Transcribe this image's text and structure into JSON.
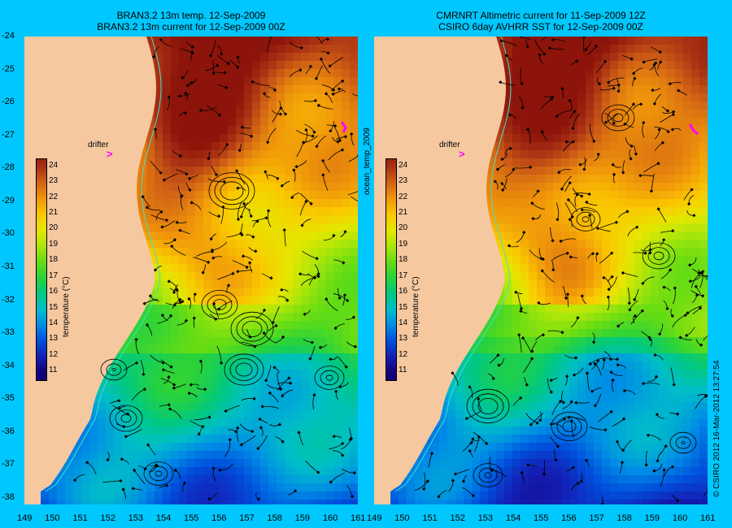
{
  "panels": [
    {
      "title_line1": "BRAN3.2 13m temp. 12-Sep-2009",
      "title_line2": "BRAN3.2 13m current for 12-Sep-2009 00Z",
      "drifter_label": "drifter",
      "drifter_marker": ">"
    },
    {
      "title_line1": "CMRNRT Altimetric current for 11-Sep-2009 12Z",
      "title_line2": "CSIRO 6day AVHRR SST for 12-Sep-2009 00Z",
      "drifter_label": "drifter",
      "drifter_marker": ">"
    }
  ],
  "side_label": "ocean_temp_2009",
  "copyright": "© CSIRO 2012   16-Mar-2012 13:27:54",
  "colorbar": {
    "title": "temperature (°C)",
    "ticks": [
      "24",
      "23",
      "22",
      "21",
      "20",
      "19",
      "18",
      "17",
      "16",
      "15",
      "14",
      "13",
      "12",
      "11"
    ]
  },
  "lat_ticks": [
    "-24",
    "-25",
    "-26",
    "-27",
    "-28",
    "-29",
    "-30",
    "-31",
    "-32",
    "-33",
    "-34",
    "-35",
    "-36",
    "-37",
    "-38"
  ],
  "lon_ticks": [
    "149",
    "150",
    "151",
    "152",
    "153",
    "154",
    "155",
    "156",
    "157",
    "158",
    "159",
    "160",
    "161"
  ],
  "lon_ticks_right": [
    "149",
    "150",
    "151",
    "152",
    "153",
    "154",
    "155",
    "156",
    "157",
    "158",
    "159",
    "160",
    "161"
  ],
  "colors": {
    "background": "#00c8ff",
    "land": "#f5c8a0",
    "coast": "#40e0d0",
    "drifter": "#ff00ff"
  },
  "map_data": {
    "lat_range": [
      -38.2,
      -24
    ],
    "lon_range": [
      149,
      161
    ],
    "temperature_range_c": [
      11,
      24.5
    ]
  }
}
